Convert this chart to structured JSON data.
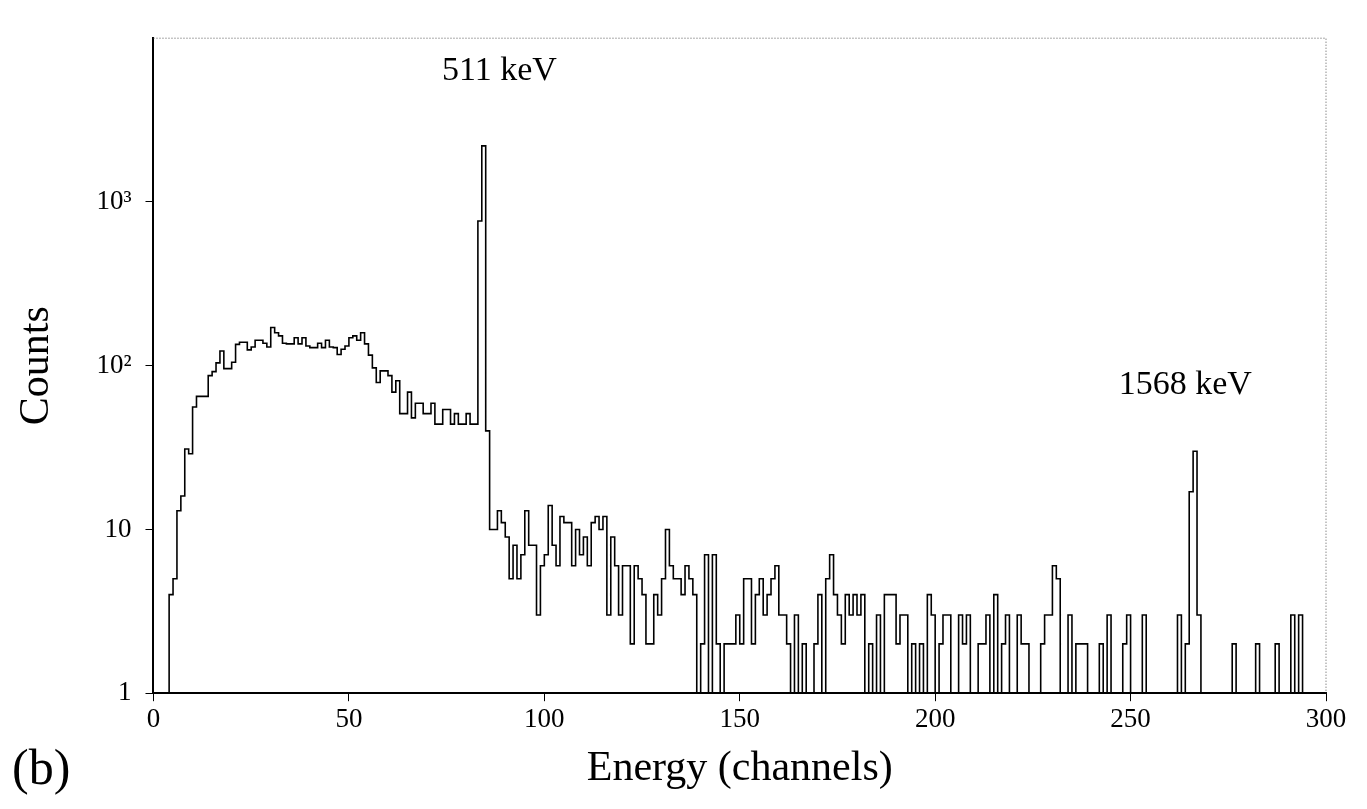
{
  "chart_data": {
    "type": "histogram",
    "xlabel": "Energy (channels)",
    "ylabel": "Counts",
    "annotations": [
      "511 keV",
      "1568 keV",
      "(b)"
    ],
    "bins": [
      0,
      1,
      2,
      3,
      4,
      5,
      6,
      7,
      8,
      9,
      10,
      11,
      12,
      13,
      14,
      15,
      16,
      17,
      18,
      19,
      20,
      21,
      22,
      23,
      24,
      25,
      26,
      27,
      28,
      29,
      30,
      31,
      32,
      33,
      34,
      35,
      36,
      37,
      38,
      39,
      40,
      41,
      42,
      43,
      44,
      45,
      46,
      47,
      48,
      49,
      50,
      51,
      52,
      53,
      54,
      55,
      56,
      57,
      58,
      59,
      60,
      61,
      62,
      63,
      64,
      65,
      66,
      67,
      68,
      69,
      70,
      71,
      72,
      73,
      74,
      75,
      76,
      77,
      78,
      79,
      80,
      81,
      82,
      83,
      84,
      85,
      86,
      87,
      88,
      89,
      90,
      91,
      92,
      93,
      94,
      95,
      96,
      97,
      98,
      99,
      100,
      101,
      102,
      103,
      104,
      105,
      106,
      107,
      108,
      109,
      110,
      111,
      112,
      113,
      114,
      115,
      116,
      117,
      118,
      119,
      120,
      121,
      122,
      123,
      124,
      125,
      126,
      127,
      128,
      129,
      130,
      131,
      132,
      133,
      134,
      135,
      136,
      137,
      138,
      139,
      140,
      141,
      142,
      143,
      144,
      145,
      146,
      147,
      148,
      149,
      150,
      151,
      152,
      153,
      154,
      155,
      156,
      157,
      158,
      159,
      160,
      161,
      162,
      163,
      164,
      165,
      166,
      167,
      168,
      169,
      170,
      171,
      172,
      173,
      174,
      175,
      176,
      177,
      178,
      179,
      180,
      181,
      182,
      183,
      184,
      185,
      186,
      187,
      188,
      189,
      190,
      191,
      192,
      193,
      194,
      195,
      196,
      197,
      198,
      199,
      200,
      201,
      202,
      203,
      204,
      205,
      206,
      207,
      208,
      209,
      210,
      211,
      212,
      213,
      214,
      215,
      216,
      217,
      218,
      219,
      220,
      221,
      222,
      223,
      224,
      225,
      226,
      227,
      228,
      229,
      230,
      231,
      232,
      233,
      234,
      235,
      236,
      237,
      238,
      239,
      240,
      241,
      242,
      243,
      244,
      245,
      246,
      247,
      248,
      249,
      250,
      251,
      252,
      253,
      254,
      255,
      256,
      257,
      258,
      259,
      260,
      261,
      262,
      263,
      264,
      265,
      266,
      267,
      268,
      269,
      270,
      271,
      272,
      273,
      274,
      275,
      276,
      277,
      278,
      279,
      280,
      281,
      282,
      283,
      284,
      285,
      286,
      287,
      288,
      289,
      290,
      291,
      292,
      293,
      294,
      295,
      296,
      297,
      298,
      299,
      300
    ],
    "values": [
      1,
      1,
      1,
      1,
      1,
      4,
      5,
      13,
      16,
      31,
      29,
      56,
      65,
      65,
      65,
      87,
      92,
      104,
      123,
      96,
      96,
      105,
      135,
      139,
      139,
      125,
      130,
      143,
      143,
      137,
      130,
      171,
      159,
      152,
      137,
      136,
      136,
      148,
      136,
      148,
      132,
      129,
      129,
      137,
      129,
      143,
      130,
      129,
      117,
      126,
      132,
      148,
      152,
      143,
      159,
      136,
      116,
      97,
      79,
      93,
      93,
      87,
      69,
      81,
      51,
      51,
      69,
      48,
      59,
      59,
      51,
      51,
      59,
      44,
      44,
      54,
      54,
      44,
      51,
      44,
      44,
      51,
      44,
      44,
      765,
      2200,
      40,
      10,
      10,
      13,
      11,
      9,
      5,
      8,
      5,
      7,
      13,
      8,
      8,
      3,
      6,
      7,
      14,
      8,
      6,
      12,
      11,
      11,
      6,
      10,
      7,
      9,
      6,
      11,
      12,
      10,
      12,
      3,
      9,
      6,
      3,
      6,
      6,
      2,
      6,
      5,
      4,
      2,
      2,
      4,
      3,
      5,
      10,
      6,
      5,
      5,
      4,
      6,
      5,
      4,
      1,
      2,
      7,
      1,
      7,
      2,
      1,
      2,
      2,
      2,
      3,
      2,
      5,
      5,
      2,
      4,
      5,
      3,
      4,
      5,
      6,
      3,
      3,
      2,
      1,
      3,
      1,
      2,
      1,
      1,
      2,
      4,
      1,
      5,
      7,
      4,
      3,
      2,
      4,
      3,
      4,
      3,
      4,
      1,
      2,
      1,
      3,
      1,
      4,
      4,
      4,
      2,
      3,
      3,
      1,
      2,
      1,
      2,
      1,
      4,
      3,
      1,
      2,
      3,
      3,
      1,
      1,
      3,
      2,
      3,
      1,
      1,
      2,
      2,
      3,
      1,
      4,
      1,
      2,
      3,
      1,
      1,
      3,
      2,
      2,
      1,
      1,
      1,
      2,
      3,
      3,
      6,
      5,
      1,
      1,
      3,
      1,
      2,
      2,
      2,
      1,
      1,
      1,
      2,
      1,
      3,
      1,
      1,
      1,
      2,
      3,
      1,
      1,
      1,
      3,
      1,
      1,
      1,
      1,
      1,
      1,
      1,
      1,
      3,
      1,
      2,
      17,
      30,
      3,
      1,
      1,
      1,
      1,
      1,
      1,
      1,
      1,
      2,
      1,
      1,
      1,
      1,
      1,
      2,
      1,
      1,
      1,
      1,
      2,
      1,
      1,
      1,
      3,
      1,
      3,
      1,
      1,
      1,
      1,
      1
    ],
    "color": "#000000",
    "xlim": [
      0,
      300
    ],
    "xticks": [
      0,
      50,
      100,
      150,
      200,
      250,
      300
    ],
    "ylim": [
      1,
      10000
    ],
    "yticks": [
      1,
      10,
      {
        "value": 100,
        "label": "10²"
      },
      {
        "value": 1000,
        "label": "10³"
      }
    ],
    "log": "y"
  }
}
